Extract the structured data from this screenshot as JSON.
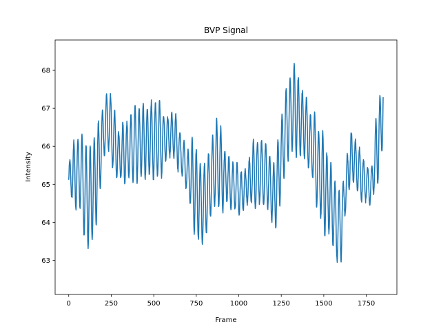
{
  "chart_data": {
    "type": "line",
    "title": "BVP Signal",
    "xlabel": "Frame",
    "ylabel": "Intensity",
    "xlim": [
      -80,
      1930
    ],
    "ylim": [
      62.1,
      68.8
    ],
    "xticks": [
      0,
      250,
      500,
      750,
      1000,
      1250,
      1500,
      1750
    ],
    "yticks": [
      63,
      64,
      65,
      66,
      67,
      68
    ],
    "grid": false,
    "color": "#1f77b4",
    "n_points": 1850,
    "trend": [
      [
        0,
        65.1
      ],
      [
        60,
        65.4
      ],
      [
        110,
        64.6
      ],
      [
        150,
        64.9
      ],
      [
        200,
        66.3
      ],
      [
        230,
        66.7
      ],
      [
        300,
        65.7
      ],
      [
        400,
        66.1
      ],
      [
        550,
        66.2
      ],
      [
        620,
        66.3
      ],
      [
        700,
        65.3
      ],
      [
        790,
        64.4
      ],
      [
        870,
        65.6
      ],
      [
        950,
        65.0
      ],
      [
        1020,
        64.8
      ],
      [
        1100,
        65.3
      ],
      [
        1160,
        65.3
      ],
      [
        1210,
        64.6
      ],
      [
        1280,
        66.6
      ],
      [
        1330,
        67.0
      ],
      [
        1400,
        66.4
      ],
      [
        1480,
        65.2
      ],
      [
        1540,
        64.6
      ],
      [
        1590,
        63.7
      ],
      [
        1660,
        65.8
      ],
      [
        1720,
        65.2
      ],
      [
        1780,
        64.9
      ],
      [
        1820,
        66.1
      ],
      [
        1850,
        67.0
      ]
    ],
    "oscillation": {
      "period_frames": 24,
      "amplitude_profile": [
        [
          0,
          0.35
        ],
        [
          100,
          0.9
        ],
        [
          200,
          0.75
        ],
        [
          400,
          0.6
        ],
        [
          600,
          0.65
        ],
        [
          800,
          0.7
        ],
        [
          1000,
          0.55
        ],
        [
          1200,
          0.6
        ],
        [
          1300,
          1.05
        ],
        [
          1500,
          0.8
        ],
        [
          1600,
          0.7
        ],
        [
          1750,
          0.6
        ],
        [
          1850,
          0.7
        ]
      ]
    }
  }
}
